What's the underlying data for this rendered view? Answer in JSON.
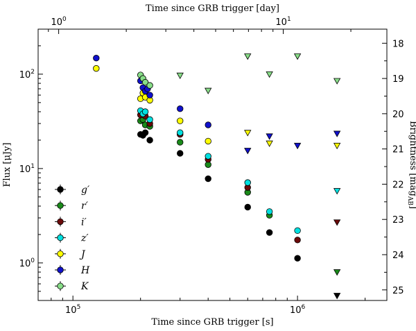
{
  "chart_data": {
    "type": "scatter",
    "x_scale": "log",
    "y_scale": "log",
    "xlim": [
      70000,
      2500000
    ],
    "ylim": [
      0.4,
      300
    ],
    "xlabel": "Time since GRB trigger [s]",
    "ylabel": "Flux [μJy]",
    "top_xlabel": "Time since GRB trigger [day]",
    "right_ylabel": "Brightness [mag_AB]",
    "right_ylabel_main": "Brightness [mag",
    "right_ylabel_sub": "AB",
    "right_ylabel_close": "]",
    "x_ticks": [
      {
        "value": 100000,
        "base": "10",
        "exp": "5"
      },
      {
        "value": 1000000,
        "base": "10",
        "exp": "6"
      }
    ],
    "y_ticks": [
      {
        "value": 1,
        "base": "10",
        "exp": "0"
      },
      {
        "value": 10,
        "base": "10",
        "exp": "1"
      },
      {
        "value": 100,
        "base": "10",
        "exp": "2"
      }
    ],
    "top_ticks": [
      {
        "value": 1,
        "base": "10",
        "exp": "0"
      },
      {
        "value": 10,
        "base": "10",
        "exp": "1"
      }
    ],
    "right_ticks": [
      "18",
      "19",
      "20",
      "21",
      "22",
      "23",
      "24",
      "25"
    ],
    "grid": false,
    "legend_position": "lower-left",
    "series": [
      {
        "name": "g′",
        "label": "g",
        "color": "#000000",
        "marker": "circle",
        "points": [
          [
            200000,
            23
          ],
          [
            205000,
            22.5
          ],
          [
            210000,
            24
          ],
          [
            220000,
            20
          ],
          [
            300000,
            14.5
          ],
          [
            400000,
            7.8
          ],
          [
            600000,
            3.9
          ],
          [
            750000,
            2.1
          ],
          [
            1000000,
            1.12
          ]
        ],
        "upper_limits": [
          [
            1500000,
            0.45
          ]
        ]
      },
      {
        "name": "r′",
        "label": "r",
        "color": "#1a8a1a",
        "marker": "circle",
        "points": [
          [
            200000,
            32
          ],
          [
            205000,
            33
          ],
          [
            210000,
            29
          ],
          [
            220000,
            28
          ],
          [
            300000,
            19
          ],
          [
            400000,
            11
          ],
          [
            600000,
            5.6
          ],
          [
            750000,
            3.2
          ]
        ],
        "upper_limits": [
          [
            1500000,
            0.8
          ]
        ]
      },
      {
        "name": "i′",
        "label": "i",
        "color": "#6b0a0a",
        "marker": "circle",
        "points": [
          [
            200000,
            37
          ],
          [
            210000,
            36
          ],
          [
            220000,
            30
          ],
          [
            300000,
            23
          ],
          [
            400000,
            12.5
          ],
          [
            600000,
            6.3
          ],
          [
            1000000,
            1.75
          ]
        ],
        "upper_limits": [
          [
            1500000,
            2.7
          ]
        ]
      },
      {
        "name": "z′",
        "label": "z",
        "color": "#00e0e0",
        "marker": "circle",
        "points": [
          [
            200000,
            41
          ],
          [
            205000,
            38
          ],
          [
            210000,
            40
          ],
          [
            220000,
            33
          ],
          [
            300000,
            24
          ],
          [
            400000,
            13.5
          ],
          [
            600000,
            7.1
          ],
          [
            750000,
            3.5
          ],
          [
            1000000,
            2.2
          ]
        ],
        "upper_limits": [
          [
            1500000,
            5.8
          ]
        ]
      },
      {
        "name": "J",
        "label": "J",
        "color": "#ffff00",
        "marker": "circle",
        "points": [
          [
            127000,
            115
          ],
          [
            200000,
            55
          ],
          [
            205000,
            63
          ],
          [
            210000,
            57
          ],
          [
            220000,
            53
          ],
          [
            300000,
            32
          ],
          [
            400000,
            19.5
          ]
        ],
        "upper_limits": [
          [
            600000,
            24
          ],
          [
            750000,
            18.5
          ],
          [
            1500000,
            17.5
          ]
        ]
      },
      {
        "name": "H",
        "label": "H",
        "color": "#1010cc",
        "marker": "circle",
        "points": [
          [
            127000,
            148
          ],
          [
            200000,
            85
          ],
          [
            205000,
            72
          ],
          [
            210000,
            66
          ],
          [
            215000,
            70
          ],
          [
            220000,
            60
          ],
          [
            300000,
            43
          ],
          [
            400000,
            29
          ]
        ],
        "upper_limits": [
          [
            600000,
            15.5
          ],
          [
            750000,
            22
          ],
          [
            1000000,
            17.5
          ],
          [
            1500000,
            23.5
          ]
        ]
      },
      {
        "name": "K",
        "label": "K",
        "color": "#88dd88",
        "marker": "circle",
        "points": [
          [
            200000,
            98
          ],
          [
            205000,
            90
          ],
          [
            210000,
            82
          ],
          [
            220000,
            76
          ]
        ],
        "upper_limits": [
          [
            300000,
            97
          ],
          [
            400000,
            67
          ],
          [
            600000,
            155
          ],
          [
            750000,
            100
          ],
          [
            1000000,
            155
          ],
          [
            1500000,
            85
          ]
        ]
      }
    ]
  }
}
